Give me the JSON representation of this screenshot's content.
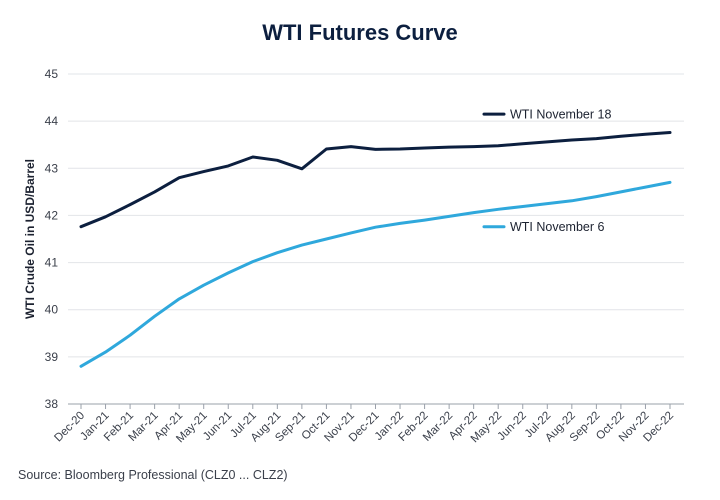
{
  "source": "Source: Bloomberg Professional (CLZ0 ... CLZ2)",
  "colors": {
    "navy": "#0c1f3f",
    "sky": "#2fa8dc",
    "grid": "#e2e4e8",
    "text": "#3a3f4a"
  },
  "chart_data": {
    "type": "line",
    "title": "WTI Futures Curve",
    "xlabel": "",
    "ylabel": "WTI Crude Oil in USD/Barrel",
    "ylim": [
      38,
      45
    ],
    "yticks": [
      38,
      39,
      40,
      41,
      42,
      43,
      44,
      45
    ],
    "grid": true,
    "legend": "inline",
    "categories": [
      "Dec-20",
      "Jan-21",
      "Feb-21",
      "Mar-21",
      "Apr-21",
      "May-21",
      "Jun-21",
      "Jul-21",
      "Aug-21",
      "Sep-21",
      "Oct-21",
      "Nov-21",
      "Dec-21",
      "Jan-22",
      "Feb-22",
      "Mar-22",
      "Apr-22",
      "May-22",
      "Jun-22",
      "Jul-22",
      "Aug-22",
      "Sep-22",
      "Oct-22",
      "Nov-22",
      "Dec-22"
    ],
    "series": [
      {
        "name": "WTI November 18",
        "color": "#0c1f3f",
        "values": [
          41.76,
          41.97,
          42.23,
          42.5,
          42.8,
          42.93,
          43.05,
          43.24,
          43.17,
          42.99,
          43.41,
          43.46,
          43.4,
          43.41,
          43.43,
          43.45,
          43.46,
          43.48,
          43.52,
          43.56,
          43.6,
          43.63,
          43.68,
          43.72,
          43.76
        ]
      },
      {
        "name": "WTI November 6",
        "color": "#2fa8dc",
        "values": [
          38.8,
          39.1,
          39.46,
          39.86,
          40.23,
          40.52,
          40.78,
          41.02,
          41.21,
          41.37,
          41.5,
          41.63,
          41.75,
          41.83,
          41.9,
          41.98,
          42.06,
          42.13,
          42.19,
          42.25,
          42.31,
          42.4,
          42.5,
          42.6,
          42.7
        ]
      }
    ]
  }
}
